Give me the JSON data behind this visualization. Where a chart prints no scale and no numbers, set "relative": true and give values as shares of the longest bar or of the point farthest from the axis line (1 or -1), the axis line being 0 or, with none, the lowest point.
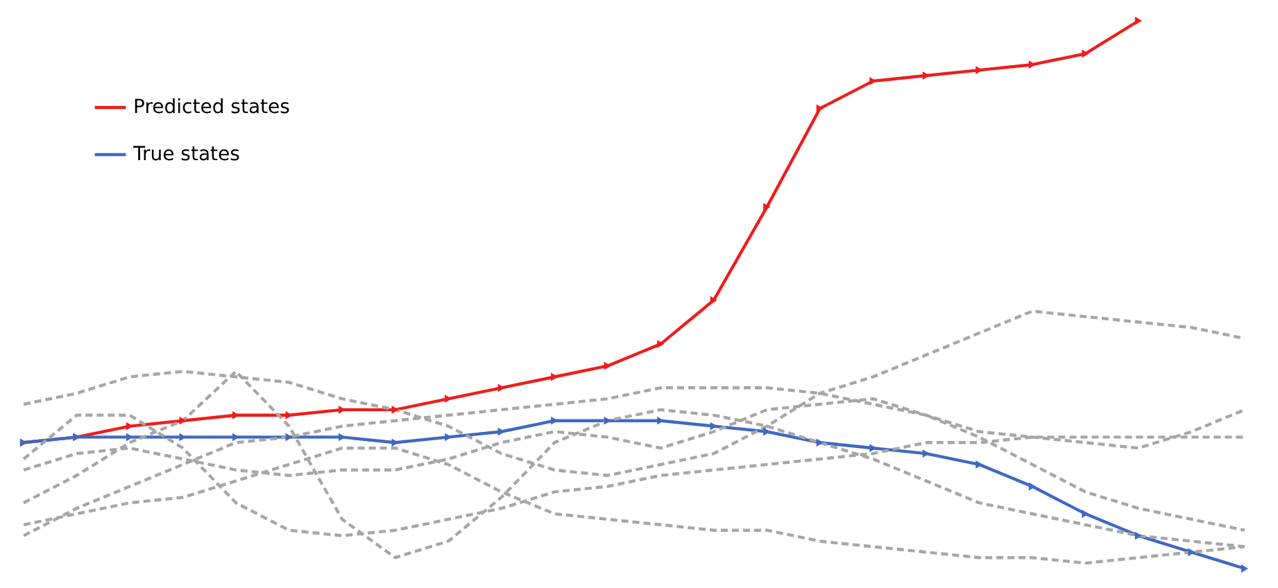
{
  "chart_data": {
    "type": "line",
    "relative": true,
    "legend": "top left",
    "categories": [
      null,
      null,
      null,
      null,
      null,
      null,
      null,
      null,
      null,
      null,
      null,
      null,
      null,
      null,
      null,
      null,
      null,
      null,
      null,
      null,
      null,
      null,
      null,
      null
    ],
    "series": [
      {
        "name": "Predicted states",
        "color": "#f01c1c",
        "marker": "triangle",
        "line_style": "solid",
        "values": [
          0.23,
          0.24,
          0.26,
          0.27,
          0.28,
          0.28,
          0.29,
          0.29,
          0.31,
          0.33,
          0.35,
          0.37,
          0.41,
          0.49,
          0.66,
          0.84,
          0.89,
          0.9,
          0.91,
          0.92,
          0.94,
          1,
          null,
          null
        ]
      },
      {
        "name": "True states",
        "color": "#3f68c2",
        "marker": "triangle",
        "line_style": "solid",
        "values": [
          0.23,
          0.24,
          0.24,
          0.24,
          0.24,
          0.24,
          0.24,
          0.23,
          0.24,
          0.25,
          0.27,
          0.27,
          0.27,
          0.26,
          0.25,
          0.23,
          0.22,
          0.21,
          0.19,
          0.15,
          0.1,
          0.06,
          0.03,
          0
        ]
      },
      {
        "color": "#a6a6a6",
        "marker": "none",
        "line_style": "dashed",
        "values": [
          0.3,
          0.32,
          0.35,
          0.36,
          0.35,
          0.34,
          0.31,
          0.29,
          0.26,
          0.21,
          0.18,
          0.17,
          0.19,
          0.21,
          0.26,
          0.32,
          0.35,
          0.39,
          0.43,
          0.47,
          0.46,
          0.45,
          0.44,
          0.42
        ]
      },
      {
        "color": "#a6a6a6",
        "marker": "none",
        "line_style": "dashed",
        "values": [
          0.2,
          0.28,
          0.28,
          0.22,
          0.12,
          0.07,
          0.06,
          0.07,
          0.09,
          0.11,
          0.14,
          0.15,
          0.17,
          0.18,
          0.19,
          0.2,
          0.21,
          0.23,
          0.23,
          0.24,
          0.24,
          0.24,
          0.24,
          0.24
        ]
      },
      {
        "color": "#a6a6a6",
        "marker": "none",
        "line_style": "dashed",
        "values": [
          0.06,
          0.11,
          0.15,
          0.19,
          0.23,
          0.24,
          0.26,
          0.27,
          0.28,
          0.29,
          0.3,
          0.31,
          0.33,
          0.33,
          0.33,
          0.32,
          0.3,
          0.28,
          0.24,
          0.19,
          0.14,
          0.11,
          0.09,
          0.07
        ]
      },
      {
        "color": "#a6a6a6",
        "marker": "none",
        "line_style": "dashed",
        "values": [
          0.12,
          0.17,
          0.23,
          0.27,
          0.36,
          0.26,
          0.09,
          0.02,
          0.05,
          0.13,
          0.23,
          0.27,
          0.29,
          0.28,
          0.26,
          0.23,
          0.2,
          0.16,
          0.12,
          0.1,
          0.08,
          0.06,
          0.05,
          0.04
        ]
      },
      {
        "color": "#a6a6a6",
        "marker": "none",
        "line_style": "dashed",
        "values": [
          0.18,
          0.21,
          0.22,
          0.2,
          0.18,
          0.17,
          0.18,
          0.18,
          0.2,
          0.23,
          0.25,
          0.24,
          0.22,
          0.25,
          0.29,
          0.3,
          0.31,
          0.28,
          0.25,
          0.24,
          0.23,
          0.22,
          0.25,
          0.29
        ]
      },
      {
        "color": "#a6a6a6",
        "marker": "none",
        "line_style": "dashed",
        "values": [
          0.08,
          0.1,
          0.12,
          0.13,
          0.16,
          0.19,
          0.22,
          0.22,
          0.19,
          0.14,
          0.1,
          0.09,
          0.08,
          0.07,
          0.07,
          0.05,
          0.04,
          0.03,
          0.02,
          0.02,
          0.01,
          0.02,
          0.03,
          0.04
        ]
      }
    ]
  }
}
